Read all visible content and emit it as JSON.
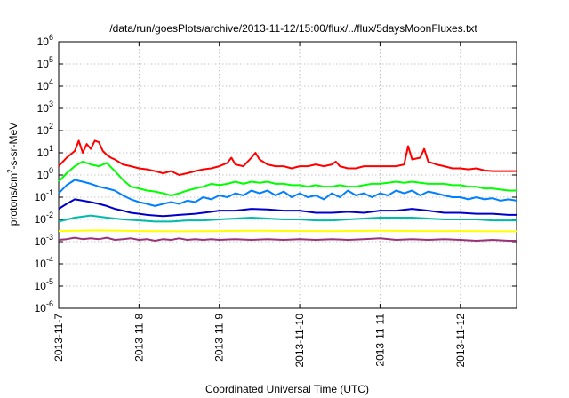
{
  "chart_data": {
    "type": "line",
    "title": "/data/run/goesPlots/archive/2013-11-12/15:00/flux/../flux/5daysMoonFluxes.txt",
    "xlabel": "Coordinated Universal Time (UTC)",
    "ylabel_main": "protons/cm",
    "ylabel_sup": "2",
    "ylabel_rest": "-s-sr-MeV",
    "x_range_days": [
      0,
      5.7
    ],
    "x_ticks": [
      {
        "label": "2013-11-7",
        "day": 0
      },
      {
        "label": "2013-11-8",
        "day": 1
      },
      {
        "label": "2013-11-9",
        "day": 2
      },
      {
        "label": "2013-11-10",
        "day": 3
      },
      {
        "label": "2013-11-11",
        "day": 4
      },
      {
        "label": "2013-11-12",
        "day": 5
      }
    ],
    "y_scale": "log",
    "y_exp_range": [
      -6,
      6
    ],
    "y_ticks": [
      {
        "base": "10",
        "exp": "-6",
        "value": -6
      },
      {
        "base": "10",
        "exp": "-5",
        "value": -5
      },
      {
        "base": "10",
        "exp": "-4",
        "value": -4
      },
      {
        "base": "10",
        "exp": "-3",
        "value": -3
      },
      {
        "base": "10",
        "exp": "-2",
        "value": -2
      },
      {
        "base": "10",
        "exp": "-1",
        "value": -1
      },
      {
        "base": "10",
        "exp": "0",
        "value": 0
      },
      {
        "base": "10",
        "exp": "1",
        "value": 1
      },
      {
        "base": "10",
        "exp": "2",
        "value": 2
      },
      {
        "base": "10",
        "exp": "3",
        "value": 3
      },
      {
        "base": "10",
        "exp": "4",
        "value": 4
      },
      {
        "base": "10",
        "exp": "5",
        "value": 5
      },
      {
        "base": "10",
        "exp": "6",
        "value": 6
      }
    ],
    "grid": true,
    "series": [
      {
        "color": "#ff0000",
        "x": [
          0,
          0.1,
          0.2,
          0.25,
          0.3,
          0.35,
          0.4,
          0.45,
          0.5,
          0.55,
          0.6,
          0.65,
          0.7,
          0.8,
          0.9,
          1.0,
          1.1,
          1.2,
          1.3,
          1.4,
          1.5,
          1.6,
          1.7,
          1.8,
          1.9,
          2.0,
          2.1,
          2.15,
          2.2,
          2.3,
          2.4,
          2.45,
          2.5,
          2.6,
          2.7,
          2.8,
          2.9,
          3.0,
          3.1,
          3.2,
          3.3,
          3.4,
          3.45,
          3.5,
          3.6,
          3.7,
          3.8,
          3.9,
          4.0,
          4.1,
          4.2,
          4.3,
          4.35,
          4.4,
          4.5,
          4.55,
          4.6,
          4.7,
          4.8,
          4.9,
          5.0,
          5.1,
          5.2,
          5.3,
          5.4,
          5.5,
          5.6,
          5.7
        ],
        "y": [
          2.5,
          6,
          12,
          35,
          10,
          25,
          15,
          35,
          30,
          12,
          8,
          6,
          5,
          3,
          2.5,
          2,
          1.8,
          1.5,
          1.2,
          1.5,
          1,
          1.2,
          1.5,
          1.8,
          2,
          2.5,
          3.5,
          6,
          3,
          2.5,
          6,
          10,
          5,
          3,
          2.5,
          2.5,
          2,
          2.5,
          2.5,
          3,
          2.5,
          3,
          4,
          2.5,
          2,
          2,
          2.5,
          2.5,
          2.5,
          2.5,
          2.5,
          3,
          20,
          5,
          6,
          15,
          4,
          3,
          2.5,
          2,
          2,
          1.8,
          2,
          1.6,
          1.5,
          1.5,
          1.5,
          1.5
        ]
      },
      {
        "color": "#00ff00",
        "x": [
          0,
          0.1,
          0.2,
          0.3,
          0.4,
          0.5,
          0.6,
          0.7,
          0.8,
          0.9,
          1.0,
          1.1,
          1.2,
          1.3,
          1.4,
          1.5,
          1.6,
          1.7,
          1.8,
          1.9,
          2.0,
          2.1,
          2.2,
          2.3,
          2.4,
          2.5,
          2.6,
          2.7,
          2.8,
          2.9,
          3.0,
          3.1,
          3.2,
          3.3,
          3.4,
          3.5,
          3.6,
          3.7,
          3.8,
          3.9,
          4.0,
          4.1,
          4.2,
          4.3,
          4.4,
          4.5,
          4.6,
          4.7,
          4.8,
          4.9,
          5.0,
          5.1,
          5.2,
          5.3,
          5.4,
          5.5,
          5.6,
          5.7
        ],
        "y": [
          0.5,
          1.2,
          2.5,
          4,
          3,
          2.5,
          3.5,
          1.5,
          0.6,
          0.3,
          0.25,
          0.2,
          0.18,
          0.15,
          0.12,
          0.15,
          0.2,
          0.25,
          0.3,
          0.4,
          0.35,
          0.4,
          0.5,
          0.4,
          0.5,
          0.45,
          0.5,
          0.4,
          0.4,
          0.35,
          0.35,
          0.3,
          0.35,
          0.3,
          0.3,
          0.35,
          0.3,
          0.3,
          0.35,
          0.4,
          0.4,
          0.45,
          0.5,
          0.45,
          0.5,
          0.45,
          0.4,
          0.4,
          0.4,
          0.35,
          0.35,
          0.3,
          0.3,
          0.25,
          0.25,
          0.22,
          0.2,
          0.2
        ]
      },
      {
        "color": "#0080ff",
        "x": [
          0,
          0.1,
          0.2,
          0.3,
          0.4,
          0.5,
          0.6,
          0.7,
          0.8,
          0.9,
          1.0,
          1.1,
          1.2,
          1.3,
          1.4,
          1.5,
          1.6,
          1.7,
          1.8,
          1.9,
          2.0,
          2.1,
          2.2,
          2.3,
          2.4,
          2.5,
          2.6,
          2.7,
          2.8,
          2.9,
          3.0,
          3.1,
          3.2,
          3.3,
          3.4,
          3.5,
          3.6,
          3.7,
          3.8,
          3.9,
          4.0,
          4.1,
          4.2,
          4.3,
          4.4,
          4.5,
          4.6,
          4.7,
          4.8,
          4.9,
          5.0,
          5.1,
          5.2,
          5.3,
          5.4,
          5.5,
          5.6,
          5.7
        ],
        "y": [
          0.15,
          0.35,
          0.6,
          0.5,
          0.4,
          0.3,
          0.25,
          0.2,
          0.12,
          0.08,
          0.06,
          0.05,
          0.04,
          0.05,
          0.06,
          0.05,
          0.07,
          0.06,
          0.1,
          0.08,
          0.12,
          0.1,
          0.15,
          0.12,
          0.2,
          0.15,
          0.2,
          0.12,
          0.18,
          0.1,
          0.15,
          0.1,
          0.12,
          0.08,
          0.15,
          0.1,
          0.2,
          0.12,
          0.15,
          0.1,
          0.15,
          0.12,
          0.2,
          0.15,
          0.2,
          0.12,
          0.18,
          0.15,
          0.12,
          0.1,
          0.1,
          0.08,
          0.1,
          0.08,
          0.09,
          0.07,
          0.08,
          0.07
        ]
      },
      {
        "color": "#0000cc",
        "x": [
          0,
          0.1,
          0.2,
          0.3,
          0.4,
          0.5,
          0.6,
          0.7,
          0.8,
          0.9,
          1.0,
          1.1,
          1.2,
          1.3,
          1.4,
          1.5,
          1.6,
          1.7,
          1.8,
          1.9,
          2.0,
          2.2,
          2.4,
          2.6,
          2.8,
          3.0,
          3.2,
          3.4,
          3.6,
          3.8,
          4.0,
          4.2,
          4.4,
          4.6,
          4.8,
          5.0,
          5.2,
          5.4,
          5.6,
          5.7
        ],
        "y": [
          0.03,
          0.05,
          0.08,
          0.07,
          0.06,
          0.05,
          0.04,
          0.03,
          0.025,
          0.02,
          0.018,
          0.016,
          0.015,
          0.014,
          0.015,
          0.016,
          0.017,
          0.018,
          0.02,
          0.022,
          0.025,
          0.025,
          0.03,
          0.028,
          0.025,
          0.025,
          0.02,
          0.02,
          0.022,
          0.02,
          0.025,
          0.025,
          0.03,
          0.025,
          0.02,
          0.02,
          0.018,
          0.018,
          0.016,
          0.016
        ]
      },
      {
        "color": "#00bbaa",
        "x": [
          0,
          0.2,
          0.4,
          0.6,
          0.8,
          1.0,
          1.2,
          1.4,
          1.6,
          1.8,
          2.0,
          2.2,
          2.4,
          2.6,
          2.8,
          3.0,
          3.2,
          3.4,
          3.6,
          3.8,
          4.0,
          4.2,
          4.4,
          4.6,
          4.8,
          5.0,
          5.2,
          5.4,
          5.6,
          5.7
        ],
        "y": [
          0.008,
          0.012,
          0.015,
          0.012,
          0.01,
          0.009,
          0.008,
          0.008,
          0.009,
          0.009,
          0.01,
          0.011,
          0.012,
          0.011,
          0.01,
          0.01,
          0.009,
          0.009,
          0.01,
          0.011,
          0.012,
          0.012,
          0.012,
          0.011,
          0.01,
          0.01,
          0.01,
          0.009,
          0.009,
          0.009
        ]
      },
      {
        "color": "#ffff00",
        "x": [
          0,
          0.5,
          1.0,
          1.5,
          2.0,
          2.5,
          3.0,
          3.5,
          4.0,
          4.5,
          5.0,
          5.5,
          5.7
        ],
        "y": [
          0.003,
          0.0032,
          0.003,
          0.0029,
          0.003,
          0.0031,
          0.003,
          0.003,
          0.0031,
          0.003,
          0.003,
          0.0029,
          0.0029
        ]
      },
      {
        "color": "#993377",
        "x": [
          0,
          0.1,
          0.2,
          0.3,
          0.4,
          0.5,
          0.6,
          0.7,
          0.8,
          0.9,
          1.0,
          1.1,
          1.2,
          1.3,
          1.4,
          1.5,
          1.6,
          1.7,
          1.8,
          1.9,
          2.0,
          2.2,
          2.4,
          2.6,
          2.8,
          3.0,
          3.2,
          3.4,
          3.6,
          3.8,
          4.0,
          4.2,
          4.4,
          4.6,
          4.8,
          5.0,
          5.2,
          5.4,
          5.6,
          5.7
        ],
        "y": [
          0.0012,
          0.0013,
          0.0015,
          0.0013,
          0.0014,
          0.0013,
          0.0015,
          0.0012,
          0.0013,
          0.0014,
          0.0012,
          0.0013,
          0.0011,
          0.0013,
          0.0012,
          0.0014,
          0.0012,
          0.0013,
          0.0012,
          0.0013,
          0.0012,
          0.0013,
          0.0012,
          0.0013,
          0.0012,
          0.0013,
          0.0012,
          0.0013,
          0.0012,
          0.0013,
          0.0014,
          0.0012,
          0.0013,
          0.0012,
          0.0013,
          0.0012,
          0.0011,
          0.0012,
          0.0011,
          0.0011
        ]
      }
    ]
  }
}
